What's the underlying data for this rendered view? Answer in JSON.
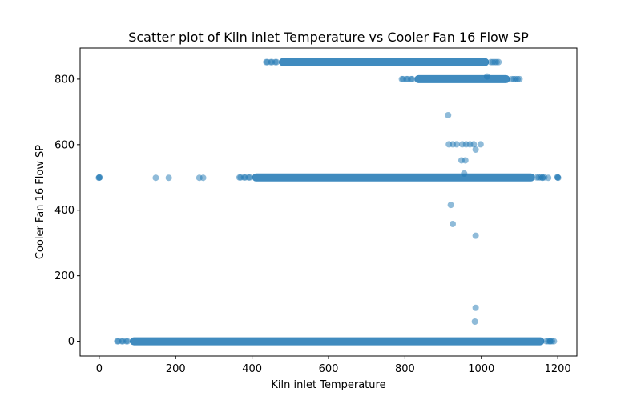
{
  "chart_data": {
    "type": "scatter",
    "title": "Scatter plot of Kiln inlet Temperature vs Cooler Fan 16 Flow SP",
    "xlabel": "Kiln inlet Temperature",
    "ylabel": "Cooler Fan 16 Flow SP",
    "xlim": [
      -50,
      1250
    ],
    "ylim": [
      -45,
      895
    ],
    "xticks": [
      0,
      200,
      400,
      600,
      800,
      1000,
      1200
    ],
    "yticks": [
      0,
      200,
      400,
      600,
      800
    ],
    "grid": false,
    "legend": "none",
    "marker_color": "#1f77b4",
    "marker_alpha": 0.5,
    "clusters": [
      {
        "x_range": [
          470,
          1020
        ],
        "y": 852
      },
      {
        "x_range": [
          825,
          1075
        ],
        "y": 800
      },
      {
        "x_range": [
          400,
          1140
        ],
        "y": 500
      },
      {
        "x_range": [
          80,
          1165
        ],
        "y": 0
      }
    ],
    "points": [
      {
        "x": 0,
        "y": 500
      },
      {
        "x": 1,
        "y": 500
      },
      {
        "x": -1,
        "y": 499
      },
      {
        "x": 1200,
        "y": 500
      },
      {
        "x": 1201,
        "y": 499
      },
      {
        "x": 1199,
        "y": 501
      },
      {
        "x": 148,
        "y": 499
      },
      {
        "x": 182,
        "y": 499
      },
      {
        "x": 262,
        "y": 499
      },
      {
        "x": 272,
        "y": 499
      },
      {
        "x": 1160,
        "y": 499
      },
      {
        "x": 1175,
        "y": 499
      },
      {
        "x": 1015,
        "y": 808
      },
      {
        "x": 913,
        "y": 690
      },
      {
        "x": 915,
        "y": 601
      },
      {
        "x": 925,
        "y": 601
      },
      {
        "x": 935,
        "y": 601
      },
      {
        "x": 950,
        "y": 601
      },
      {
        "x": 960,
        "y": 601
      },
      {
        "x": 970,
        "y": 601
      },
      {
        "x": 980,
        "y": 601
      },
      {
        "x": 998,
        "y": 601
      },
      {
        "x": 985,
        "y": 585
      },
      {
        "x": 948,
        "y": 552
      },
      {
        "x": 958,
        "y": 552
      },
      {
        "x": 955,
        "y": 512
      },
      {
        "x": 920,
        "y": 416
      },
      {
        "x": 925,
        "y": 358
      },
      {
        "x": 985,
        "y": 322
      },
      {
        "x": 985,
        "y": 102
      },
      {
        "x": 983,
        "y": 60
      },
      {
        "x": 1180,
        "y": 0
      }
    ]
  }
}
